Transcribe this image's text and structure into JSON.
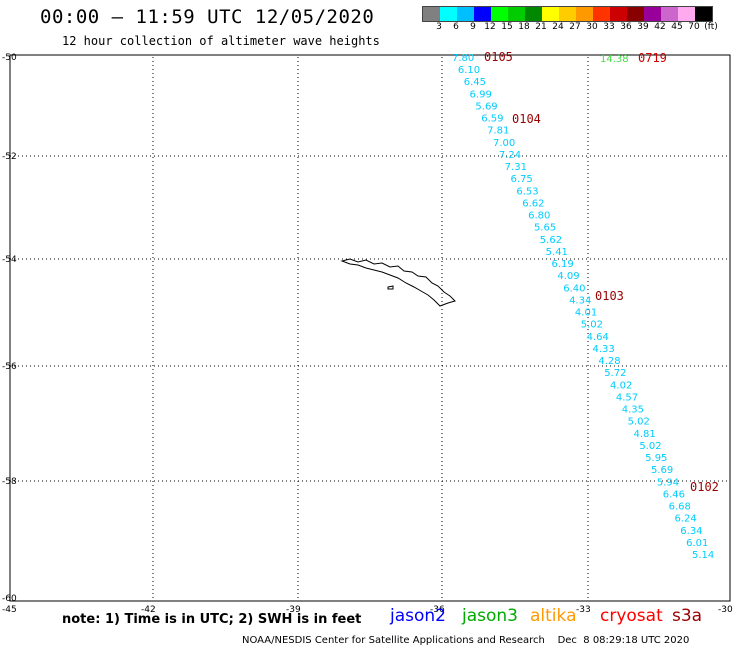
{
  "header": {
    "title": "00:00 – 11:59 UTC 12/05/2020",
    "subtitle": "12 hour collection of altimeter wave heights"
  },
  "legend": {
    "colors": [
      "#808080",
      "#00ffff",
      "#00bfff",
      "#0000ff",
      "#00ff00",
      "#00cc00",
      "#008800",
      "#ffff00",
      "#ffcc00",
      "#ff9900",
      "#ff3300",
      "#cc0000",
      "#880000",
      "#990099",
      "#cc66cc",
      "#ffaaee",
      "#000000"
    ],
    "labels": [
      "3",
      "6",
      "9",
      "12",
      "15",
      "18",
      "21",
      "24",
      "27",
      "30",
      "33",
      "36",
      "39",
      "42",
      "45",
      "70",
      "(ft)"
    ]
  },
  "axes": {
    "lat_labels": [
      "-50",
      "-52",
      "-54",
      "-56",
      "-58",
      "-60"
    ],
    "lon_labels": [
      "-45",
      "-42",
      "-39",
      "-36",
      "-33",
      "-30"
    ]
  },
  "chart_data": {
    "type": "scatter",
    "units": "ft",
    "track_color": "#00ccff",
    "values": [
      "7.80",
      "6.10",
      "6.45",
      "6.99",
      "5.69",
      "6.59",
      "7.81",
      "7.00",
      "7.24",
      "7.31",
      "6.75",
      "6.53",
      "6.62",
      "6.80",
      "5.65",
      "5.62",
      "5.41",
      "6.19",
      "4.09",
      "6.40",
      "4.34",
      "4.01",
      "5.02",
      "4.64",
      "4.33",
      "4.28",
      "5.72",
      "4.02",
      "4.57",
      "4.35",
      "5.02",
      "4.81",
      "5.02",
      "5.95",
      "5.69",
      "5.94",
      "6.46",
      "6.68",
      "6.24",
      "6.34",
      "6.01",
      "5.14"
    ],
    "green_value": "14.38",
    "time_labels": [
      "0105",
      "0719",
      "0104",
      "0103",
      "0102"
    ]
  },
  "footer": {
    "note": "note: 1) Time is in UTC; 2) SWH is in feet",
    "satellites": [
      {
        "name": "jason2",
        "color": "#0000ff"
      },
      {
        "name": "jason3",
        "color": "#00aa00"
      },
      {
        "name": "altika",
        "color": "#ff9900"
      },
      {
        "name": "cryosat",
        "color": "#ff0000"
      },
      {
        "name": "s3a",
        "color": "#990000"
      }
    ],
    "credit": "NOAA/NESDIS Center for Satellite Applications and Research    Dec  8 08:29:18 UTC 2020"
  }
}
